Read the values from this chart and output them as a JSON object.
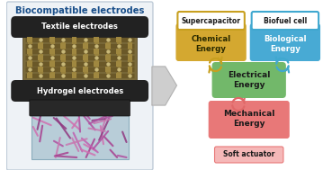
{
  "title": "Biocompatible electrodes",
  "title_color": "#1a4f8a",
  "left_panel_bg": "#eef2f6",
  "left_panel_border": "#c0ccd8",
  "label1": "Textile electrodes",
  "label2": "Hydrogel electrodes",
  "label_bg": "#222222",
  "label_text_color": "#ffffff",
  "box_supercap_label": "Supercapacitor",
  "box_supercap_energy": "Chemical\nEnergy",
  "box_supercap_label_bg": "#ffffff",
  "box_supercap_label_border": "#c8a020",
  "box_supercap_energy_bg": "#d4a830",
  "box_biofuel_label": "Biofuel cell",
  "box_biofuel_energy": "Biological\nEnergy",
  "box_biofuel_label_bg": "#ffffff",
  "box_biofuel_label_border": "#40a8d0",
  "box_biofuel_energy_bg": "#48aad4",
  "box_electrical": "Electrical\nEnergy",
  "box_electrical_bg": "#72b86a",
  "box_mechanical": "Mechanical\nEnergy",
  "box_mechanical_bg": "#e87878",
  "box_soft": "Soft actuator",
  "box_soft_bg": "#f5b8b8",
  "box_soft_border": "#e87878",
  "arrow_chemical_color": "#c8a020",
  "arrow_bio_color": "#40a8d0",
  "arrow_mech_color": "#e06868",
  "bg_color": "#ffffff",
  "fabric_bg": "#7a6a3a",
  "fabric_warp": "#a08840",
  "fabric_weft": "#6a5828",
  "fabric_node": "#c8b878",
  "hydrogel_top": "#282828",
  "hydrogel_body": "#b8cdd8",
  "hydrogel_border": "#8aacbc"
}
